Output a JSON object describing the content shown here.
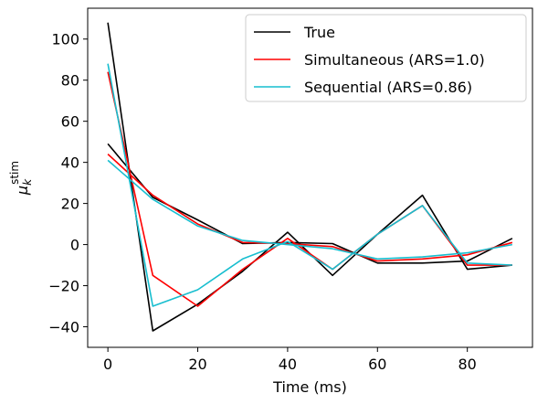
{
  "chart_data": {
    "type": "line",
    "xlabel": "Time (ms)",
    "ylabel": {
      "base": "μ",
      "sub": "k",
      "sup": "stim"
    },
    "xlim": [
      -4.5,
      94.5
    ],
    "ylim": [
      -50,
      115
    ],
    "xticks": [
      0,
      20,
      40,
      60,
      80
    ],
    "yticks": [
      -40,
      -20,
      0,
      20,
      40,
      60,
      80,
      100
    ],
    "legend_position": "upper right",
    "grid": false,
    "x": [
      0,
      10,
      20,
      30,
      40,
      50,
      60,
      70,
      80,
      90
    ],
    "series": [
      {
        "name": "True",
        "color": "#000000",
        "lines": [
          [
            108,
            -42,
            -29,
            -13,
            6,
            -15,
            5,
            24,
            -12,
            -10
          ],
          [
            49,
            23,
            12,
            0.5,
            1,
            0.5,
            -9,
            -9,
            -8,
            3
          ]
        ]
      },
      {
        "name": "Simultaneous (ARS=1.0)",
        "color": "#ff0000",
        "lines": [
          [
            84,
            -15,
            -30,
            -12,
            3,
            -12,
            5,
            19,
            -10,
            -10
          ],
          [
            44,
            24,
            10,
            1,
            0.5,
            -1,
            -8,
            -7,
            -5,
            1
          ]
        ]
      },
      {
        "name": "Sequential (ARS=0.86)",
        "color": "#17becf",
        "lines": [
          [
            88,
            -30,
            -22,
            -7,
            1.5,
            -12,
            5,
            19,
            -9,
            -10
          ],
          [
            41,
            22,
            9,
            2,
            0,
            -2,
            -7,
            -6,
            -4,
            0
          ]
        ]
      }
    ]
  }
}
